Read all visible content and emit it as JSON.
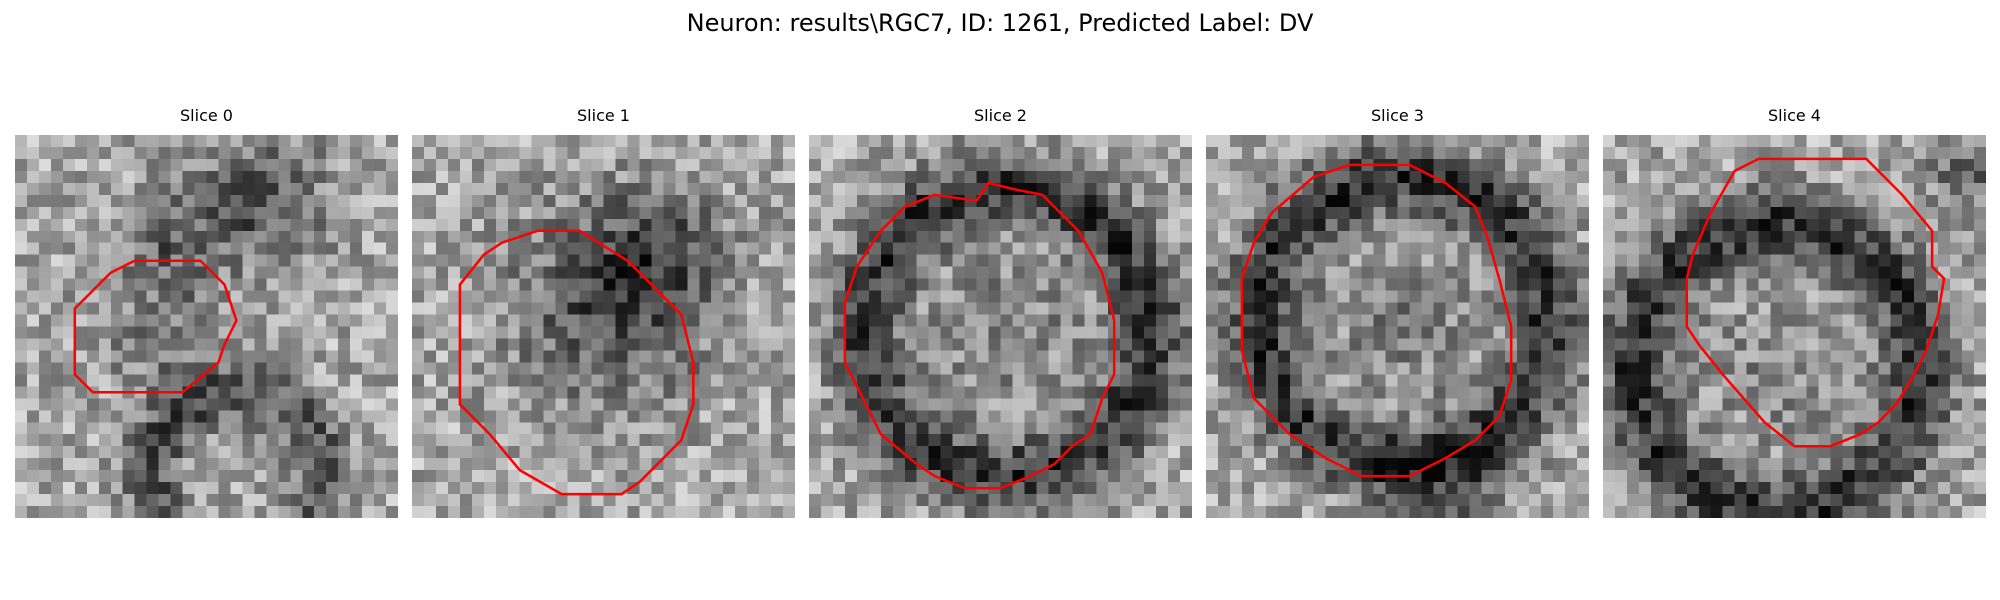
{
  "figure": {
    "title": "Neuron: results\\RGC7, ID: 1261, Predicted Label: DV"
  },
  "panels": [
    {
      "title": "Slice 0"
    },
    {
      "title": "Slice 1"
    },
    {
      "title": "Slice 2"
    },
    {
      "title": "Slice 3"
    },
    {
      "title": "Slice 4"
    }
  ],
  "colors": {
    "contour": "#ff0000",
    "background": "#ffffff"
  }
}
